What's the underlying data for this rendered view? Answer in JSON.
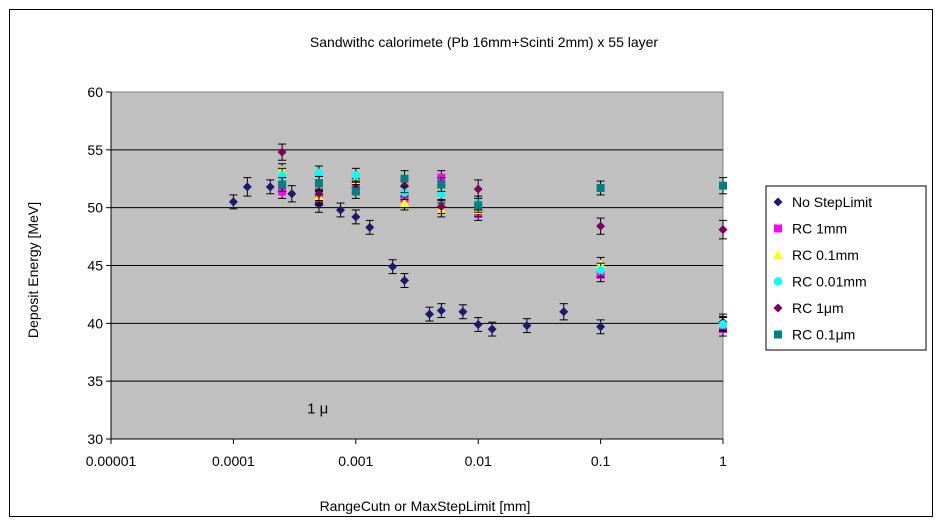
{
  "chart_data": {
    "type": "scatter",
    "title": "Sandwithc calorimete (Pb 16mm+Scinti 2mm) x 55 layer",
    "xlabel": "RangeCutn or MaxStepLimit [mm]",
    "ylabel": "Deposit Energy [MeV]",
    "x_scale": "log",
    "xlim": [
      1e-05,
      1
    ],
    "ylim": [
      30,
      60
    ],
    "x_ticks": [
      1e-05,
      0.0001,
      0.001,
      0.01,
      0.1,
      1
    ],
    "x_tick_labels": [
      "0.00001",
      "0.0001",
      "0.001",
      "0.01",
      "0.1",
      "1"
    ],
    "y_ticks": [
      30,
      35,
      40,
      45,
      50,
      55,
      60
    ],
    "y_tick_labels": [
      "30",
      "35",
      "40",
      "45",
      "50",
      "55",
      "60"
    ],
    "grid": "horizontal",
    "legend_position": "right",
    "annotation": "1 μ",
    "series": [
      {
        "name": "No StepLimit",
        "color": "#1a1a6e",
        "marker": "diamond",
        "points": [
          {
            "x": 0.0001,
            "y": 50.5,
            "err": 0.6
          },
          {
            "x": 0.00013,
            "y": 51.8,
            "err": 0.8
          },
          {
            "x": 0.0002,
            "y": 51.8,
            "err": 0.6
          },
          {
            "x": 0.0003,
            "y": 51.2,
            "err": 0.7
          },
          {
            "x": 0.0005,
            "y": 50.3,
            "err": 0.7
          },
          {
            "x": 0.00075,
            "y": 49.8,
            "err": 0.6
          },
          {
            "x": 0.001,
            "y": 49.2,
            "err": 0.6
          },
          {
            "x": 0.0013,
            "y": 48.3,
            "err": 0.6
          },
          {
            "x": 0.002,
            "y": 44.9,
            "err": 0.6
          },
          {
            "x": 0.0025,
            "y": 43.7,
            "err": 0.6
          },
          {
            "x": 0.004,
            "y": 40.8,
            "err": 0.6
          },
          {
            "x": 0.005,
            "y": 41.1,
            "err": 0.6
          },
          {
            "x": 0.0075,
            "y": 41.0,
            "err": 0.6
          },
          {
            "x": 0.01,
            "y": 39.9,
            "err": 0.6
          },
          {
            "x": 0.013,
            "y": 39.5,
            "err": 0.6
          },
          {
            "x": 0.025,
            "y": 39.8,
            "err": 0.6
          },
          {
            "x": 0.05,
            "y": 41.0,
            "err": 0.7
          },
          {
            "x": 0.1,
            "y": 39.7,
            "err": 0.6
          },
          {
            "x": 1,
            "y": 40.1,
            "err": 0.7
          }
        ]
      },
      {
        "name": "RC 1mm",
        "color": "#ff00ff",
        "marker": "square",
        "points": [
          {
            "x": 0.00025,
            "y": 51.4,
            "err": 0.6
          },
          {
            "x": 0.0005,
            "y": 50.8,
            "err": 0.6
          },
          {
            "x": 0.001,
            "y": 51.9,
            "err": 0.6
          },
          {
            "x": 0.0025,
            "y": 50.8,
            "err": 0.6
          },
          {
            "x": 0.005,
            "y": 52.6,
            "err": 0.6
          },
          {
            "x": 0.01,
            "y": 49.5,
            "err": 0.6
          },
          {
            "x": 0.1,
            "y": 44.2,
            "err": 0.6
          },
          {
            "x": 1,
            "y": 39.5,
            "err": 0.6
          }
        ]
      },
      {
        "name": "RC 0.1mm",
        "color": "#ffff00",
        "marker": "triangle",
        "points": [
          {
            "x": 0.00025,
            "y": 53.2,
            "err": 0.6
          },
          {
            "x": 0.0005,
            "y": 51.0,
            "err": 0.6
          },
          {
            "x": 0.001,
            "y": 52.3,
            "err": 0.6
          },
          {
            "x": 0.0025,
            "y": 50.4,
            "err": 0.6
          },
          {
            "x": 0.005,
            "y": 49.8,
            "err": 0.6
          },
          {
            "x": 0.01,
            "y": 49.8,
            "err": 0.6
          },
          {
            "x": 0.1,
            "y": 45.1,
            "err": 0.6
          },
          {
            "x": 1,
            "y": 40.0,
            "err": 0.6
          }
        ]
      },
      {
        "name": "RC 0.01mm",
        "color": "#00ffff",
        "marker": "circle",
        "points": [
          {
            "x": 0.00025,
            "y": 52.8,
            "err": 0.6
          },
          {
            "x": 0.0005,
            "y": 53.0,
            "err": 0.6
          },
          {
            "x": 0.001,
            "y": 52.8,
            "err": 0.6
          },
          {
            "x": 0.0025,
            "y": 51.3,
            "err": 0.6
          },
          {
            "x": 0.005,
            "y": 51.2,
            "err": 0.6
          },
          {
            "x": 0.01,
            "y": 50.4,
            "err": 0.6
          },
          {
            "x": 0.1,
            "y": 44.6,
            "err": 0.6
          },
          {
            "x": 1,
            "y": 39.9,
            "err": 0.6
          }
        ]
      },
      {
        "name": "RC 1μm",
        "color": "#800060",
        "marker": "diamond",
        "points": [
          {
            "x": 0.00025,
            "y": 54.8,
            "err": 0.7
          },
          {
            "x": 0.0005,
            "y": 51.2,
            "err": 0.6
          },
          {
            "x": 0.001,
            "y": 51.7,
            "err": 0.6
          },
          {
            "x": 0.0025,
            "y": 51.9,
            "err": 0.6
          },
          {
            "x": 0.005,
            "y": 50.1,
            "err": 0.6
          },
          {
            "x": 0.01,
            "y": 51.6,
            "err": 0.8
          },
          {
            "x": 0.1,
            "y": 48.4,
            "err": 0.7
          },
          {
            "x": 1,
            "y": 48.1,
            "err": 0.8
          }
        ]
      },
      {
        "name": "RC 0.1μm",
        "color": "#008080",
        "marker": "square",
        "points": [
          {
            "x": 0.00025,
            "y": 52.0,
            "err": 0.6
          },
          {
            "x": 0.0005,
            "y": 52.1,
            "err": 0.6
          },
          {
            "x": 0.001,
            "y": 51.4,
            "err": 0.6
          },
          {
            "x": 0.0025,
            "y": 52.5,
            "err": 0.7
          },
          {
            "x": 0.005,
            "y": 52.0,
            "err": 0.6
          },
          {
            "x": 0.01,
            "y": 50.2,
            "err": 0.6
          },
          {
            "x": 0.1,
            "y": 51.7,
            "err": 0.6
          },
          {
            "x": 1,
            "y": 51.9,
            "err": 0.7
          }
        ]
      }
    ]
  }
}
